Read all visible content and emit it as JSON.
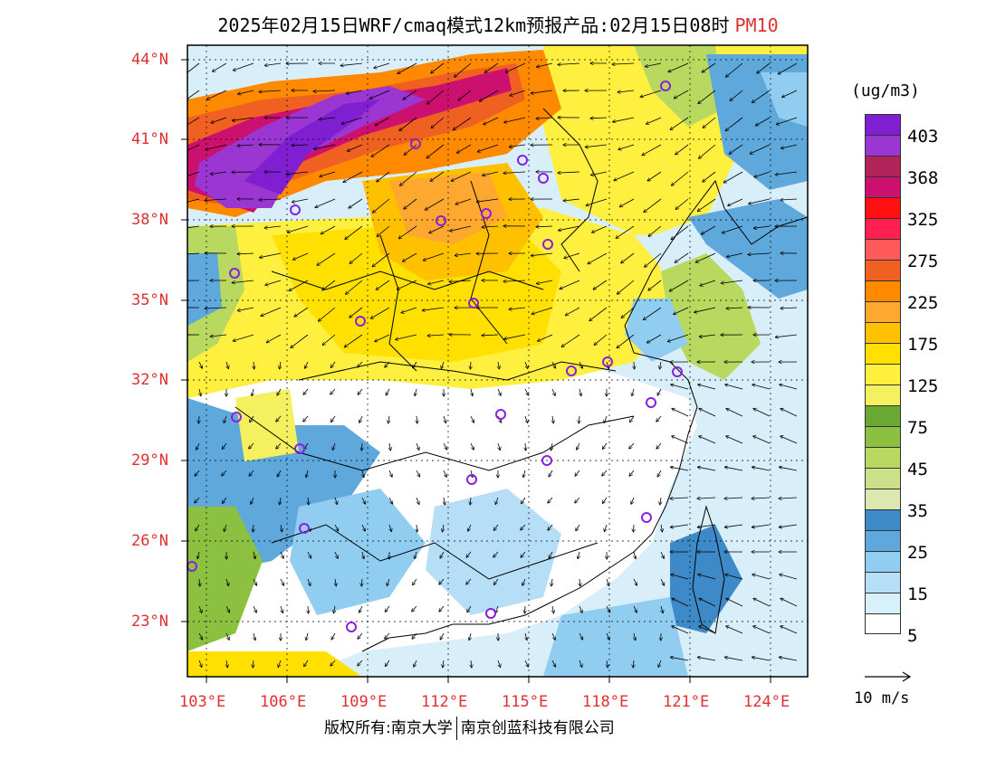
{
  "header": {
    "title": "2025年02月15日WRF/cmaq模式12km预报产品:02月15日08时",
    "pollutant": "PM10"
  },
  "axes": {
    "lat_labels": [
      "44°N",
      "41°N",
      "38°N",
      "35°N",
      "32°N",
      "29°N",
      "26°N",
      "23°N"
    ],
    "lon_labels": [
      "103°E",
      "106°E",
      "109°E",
      "112°E",
      "115°E",
      "118°E",
      "121°E",
      "124°E"
    ]
  },
  "legend": {
    "unit": "(ug/m3)",
    "labels": [
      "403",
      "368",
      "325",
      "275",
      "225",
      "175",
      "125",
      "75",
      "45",
      "35",
      "25",
      "15",
      "5"
    ],
    "colors": [
      "#7f1fd1",
      "#9b36d2",
      "#b0245a",
      "#cc1070",
      "#ff1010",
      "#ff2050",
      "#ff5a5a",
      "#f06020",
      "#ff8a00",
      "#ffa830",
      "#ffc000",
      "#ffe000",
      "#fff040",
      "#f4f060",
      "#6aa834",
      "#8cc040",
      "#b8d860",
      "#cce08a",
      "#dce8b0",
      "#3e8ac8",
      "#5ea8dc",
      "#90cdf0",
      "#b6def6",
      "#d8f0fc",
      "#ffffff"
    ]
  },
  "wind_reference": {
    "label": "10 m/s"
  },
  "footer": {
    "copyright": "版权所有:南京大学",
    "company": "南京创蓝科技有限公司"
  },
  "palette": {
    "sea": "#d8eef8",
    "frame": "#000000",
    "label_red": "#e03030"
  }
}
